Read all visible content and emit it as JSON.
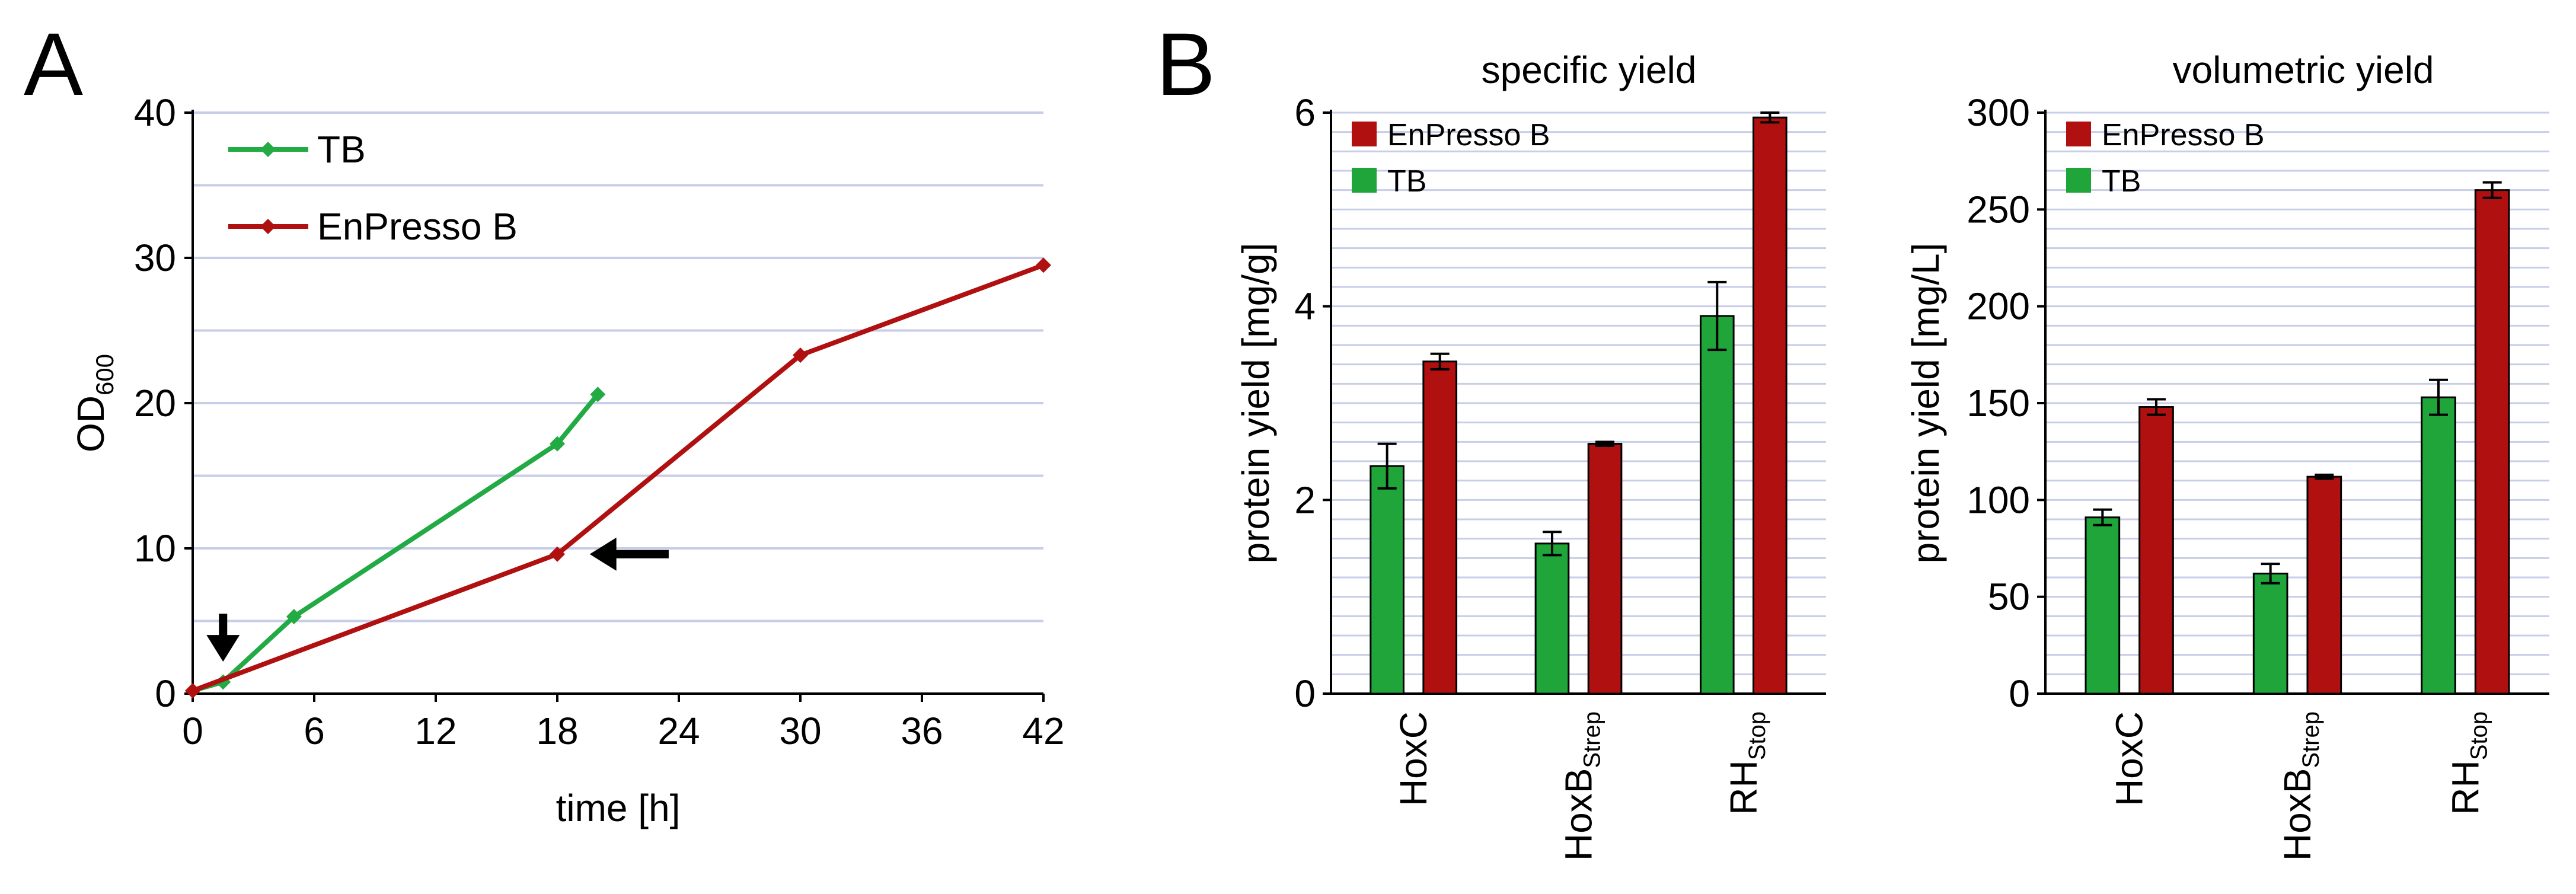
{
  "panels": {
    "a_label": "A",
    "b_label": "B"
  },
  "colors": {
    "tb": "#22aa44",
    "tb_bar": "#1fa53a",
    "enpresso": "#b01010",
    "grid": "#c8cde8",
    "axis": "#000000"
  },
  "chart_data": [
    {
      "id": "growth",
      "type": "line",
      "title": "",
      "xlabel": "time [h]",
      "ylabel_main": "OD",
      "ylabel_sub": "600",
      "xlim": [
        0,
        42
      ],
      "ylim": [
        0,
        40
      ],
      "xticks": [
        0,
        6,
        12,
        18,
        24,
        30,
        36,
        42
      ],
      "yticks": [
        0,
        10,
        20,
        30,
        40
      ],
      "grid_y_step": 5,
      "legend_position": "top-left",
      "series": [
        {
          "name": "TB",
          "color_key": "tb",
          "points": [
            [
              0,
              0.2
            ],
            [
              1.5,
              0.8
            ],
            [
              5,
              5.3
            ],
            [
              18,
              17.2
            ],
            [
              20,
              20.6
            ]
          ]
        },
        {
          "name": "EnPresso B",
          "color_key": "enpresso",
          "points": [
            [
              0,
              0.2
            ],
            [
              18,
              9.6
            ],
            [
              30,
              23.3
            ],
            [
              42,
              29.5
            ]
          ]
        }
      ],
      "annotations": [
        {
          "type": "arrow-down",
          "x": 1.5,
          "y_from": 5.5,
          "y_to": 2.2
        },
        {
          "type": "arrow-left",
          "y": 9.6,
          "x_from": 23.5,
          "x_to": 19.6
        }
      ]
    },
    {
      "id": "specific",
      "type": "bar",
      "title": "specific yield",
      "ylabel": "protein yield [mg/g]",
      "ylim": [
        0,
        6
      ],
      "yticks": [
        0,
        2,
        4,
        6
      ],
      "grid_y_step": 0.2,
      "legend_position": "top-left",
      "categories": [
        {
          "main": "HoxC",
          "sub": ""
        },
        {
          "main": "HoxB",
          "sub": "Strep"
        },
        {
          "main": "RH",
          "sub": "Stop"
        }
      ],
      "series": [
        {
          "name": "TB",
          "color_key": "tb_bar",
          "values": [
            2.35,
            1.55,
            3.9
          ],
          "errors": [
            0.23,
            0.12,
            0.35
          ]
        },
        {
          "name": "EnPresso B",
          "color_key": "enpresso",
          "values": [
            3.43,
            2.58,
            5.95
          ],
          "errors": [
            0.08,
            0.02,
            0.05
          ]
        }
      ],
      "legend_order": [
        "EnPresso B",
        "TB"
      ]
    },
    {
      "id": "volumetric",
      "type": "bar",
      "title": "volumetric yield",
      "ylabel": "protein yield [mg/L]",
      "ylim": [
        0,
        300
      ],
      "yticks": [
        0,
        50,
        100,
        150,
        200,
        250,
        300
      ],
      "grid_y_step": 10,
      "legend_position": "top-left",
      "categories": [
        {
          "main": "HoxC",
          "sub": ""
        },
        {
          "main": "HoxB",
          "sub": "Strep"
        },
        {
          "main": "RH",
          "sub": "Stop"
        }
      ],
      "series": [
        {
          "name": "TB",
          "color_key": "tb_bar",
          "values": [
            91,
            62,
            153
          ],
          "errors": [
            4,
            5,
            9
          ]
        },
        {
          "name": "EnPresso B",
          "color_key": "enpresso",
          "values": [
            148,
            112,
            260
          ],
          "errors": [
            4,
            1,
            4
          ]
        }
      ],
      "legend_order": [
        "EnPresso B",
        "TB"
      ]
    }
  ]
}
